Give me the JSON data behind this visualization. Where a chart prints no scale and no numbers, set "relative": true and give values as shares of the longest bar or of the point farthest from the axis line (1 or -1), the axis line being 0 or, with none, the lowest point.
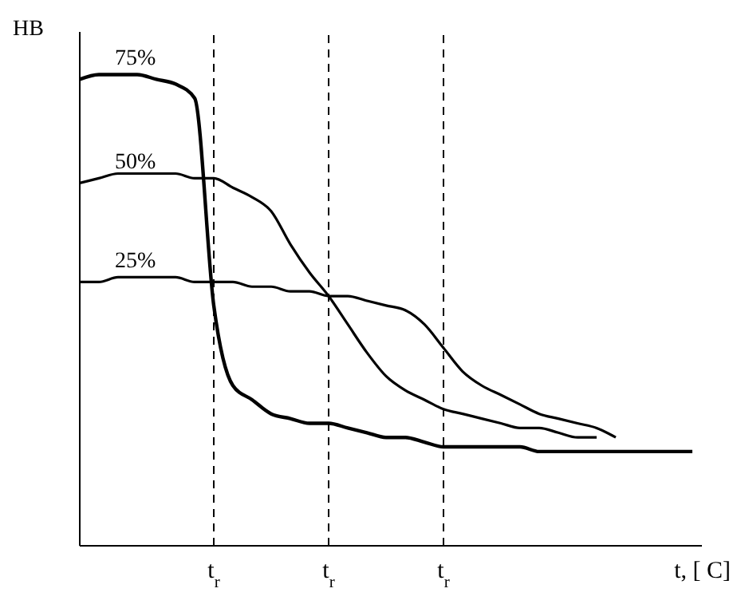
{
  "chart_data": {
    "type": "line",
    "relative": true,
    "xlabel": "t, [ C]",
    "ylabel": "HB",
    "categories": [
      null,
      null,
      null,
      null,
      null,
      null,
      null,
      "t$_{r}$",
      null,
      null,
      null,
      null,
      null,
      "t$_{r}$",
      null,
      null,
      null,
      null,
      null,
      "t$_{r}$",
      null,
      null,
      null,
      null,
      null,
      null,
      null,
      null,
      null,
      null,
      null,
      null,
      null
    ],
    "marker": "none",
    "line_style": "solid",
    "legend": false,
    "grid": "x",
    "series": [
      {
        "name": "75%",
        "color": "#000000",
        "values": [
          0.99,
          1.0,
          1.0,
          1.0,
          0.99,
          0.98,
          0.95,
          0.51,
          0.34,
          0.31,
          0.28,
          0.27,
          0.26,
          0.26,
          0.25,
          0.24,
          0.23,
          0.23,
          0.22,
          0.21,
          0.21,
          0.21,
          0.21,
          0.21,
          0.2,
          0.2,
          0.2,
          0.2,
          0.2,
          0.2,
          0.2,
          0.2,
          0.2
        ]
      },
      {
        "name": "50%",
        "color": "#000000",
        "values": [
          0.77,
          0.78,
          0.79,
          0.79,
          0.79,
          0.79,
          0.78,
          0.78,
          0.76,
          0.74,
          0.71,
          0.64,
          0.58,
          0.53,
          0.47,
          0.41,
          0.36,
          0.33,
          0.31,
          0.29,
          0.28,
          0.27,
          0.26,
          0.25,
          0.25,
          0.24,
          0.23,
          0.23,
          null,
          null,
          null,
          null,
          null
        ]
      },
      {
        "name": "25%",
        "color": "#000000",
        "values": [
          0.56,
          0.56,
          0.57,
          0.57,
          0.57,
          0.57,
          0.56,
          0.56,
          0.56,
          0.55,
          0.55,
          0.54,
          0.54,
          0.53,
          0.53,
          0.52,
          0.51,
          0.5,
          0.47,
          0.42,
          0.37,
          0.34,
          0.32,
          0.3,
          0.28,
          0.27,
          0.26,
          0.25,
          0.23,
          null,
          null,
          null,
          null
        ]
      }
    ]
  }
}
